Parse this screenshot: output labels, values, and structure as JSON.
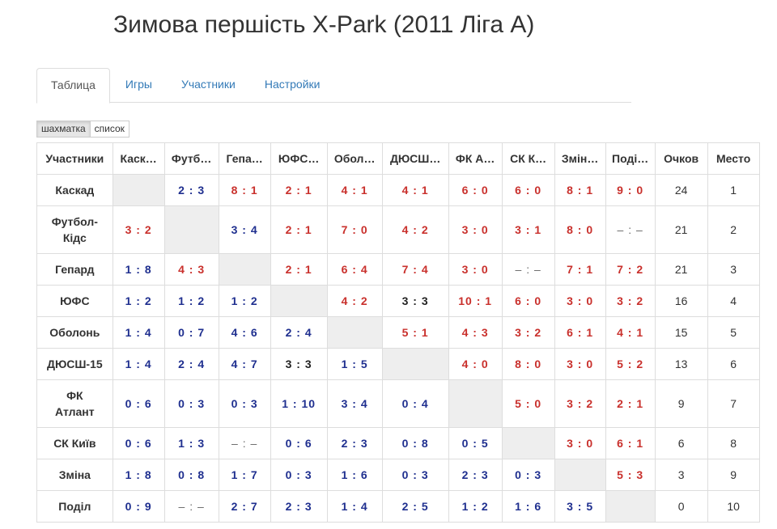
{
  "header": {
    "title": "Зимова першість X-Park (2011 Ліга А)"
  },
  "tabs": [
    "Таблица",
    "Игры",
    "Участники",
    "Настройки"
  ],
  "views": [
    "шахматка",
    "список"
  ],
  "table": {
    "columns": [
      "Участники",
      "Каск…",
      "Футб…",
      "Гепа…",
      "ЮФС…",
      "Обол…",
      "ДЮСШ…",
      "ФК А…",
      "СК К…",
      "Змін…",
      "Поді…",
      "Очков",
      "Место"
    ],
    "rows": [
      [
        "Каскад",
        null,
        "2 : 3",
        "8 : 1",
        "2 : 1",
        "4 : 1",
        "4 : 1",
        "6 : 0",
        "6 : 0",
        "8 : 1",
        "9 : 0",
        24,
        1
      ],
      [
        "Футбол-Кідс",
        "3 : 2",
        null,
        "3 : 4",
        "2 : 1",
        "7 : 0",
        "4 : 2",
        "3 : 0",
        "3 : 1",
        "8 : 0",
        "– : –",
        21,
        2
      ],
      [
        "Гепард",
        "1 : 8",
        "4 : 3",
        null,
        "2 : 1",
        "6 : 4",
        "7 : 4",
        "3 : 0",
        "– : –",
        "7 : 1",
        "7 : 2",
        21,
        3
      ],
      [
        "ЮФС",
        "1 : 2",
        "1 : 2",
        "1 : 2",
        null,
        "4 : 2",
        "3 : 3",
        "10 : 1",
        "6 : 0",
        "3 : 0",
        "3 : 2",
        16,
        4
      ],
      [
        "Оболонь",
        "1 : 4",
        "0 : 7",
        "4 : 6",
        "2 : 4",
        null,
        "5 : 1",
        "4 : 3",
        "3 : 2",
        "6 : 1",
        "4 : 1",
        15,
        5
      ],
      [
        "ДЮСШ-15",
        "1 : 4",
        "2 : 4",
        "4 : 7",
        "3 : 3",
        "1 : 5",
        null,
        "4 : 0",
        "8 : 0",
        "3 : 0",
        "5 : 2",
        13,
        6
      ],
      [
        "ФК Атлант",
        "0 : 6",
        "0 : 3",
        "0 : 3",
        "1 : 10",
        "3 : 4",
        "0 : 4",
        null,
        "5 : 0",
        "3 : 2",
        "2 : 1",
        9,
        7
      ],
      [
        "СК Київ",
        "0 : 6",
        "1 : 3",
        "– : –",
        "0 : 6",
        "2 : 3",
        "0 : 8",
        "0 : 5",
        null,
        "3 : 0",
        "6 : 1",
        6,
        8
      ],
      [
        "Зміна",
        "1 : 8",
        "0 : 8",
        "1 : 7",
        "0 : 3",
        "1 : 6",
        "0 : 3",
        "2 : 3",
        "0 : 3",
        null,
        "5 : 3",
        3,
        9
      ],
      [
        "Поділ",
        "0 : 9",
        "– : –",
        "2 : 7",
        "2 : 3",
        "1 : 4",
        "2 : 5",
        "1 : 2",
        "1 : 6",
        "3 : 5",
        null,
        0,
        10
      ]
    ]
  }
}
